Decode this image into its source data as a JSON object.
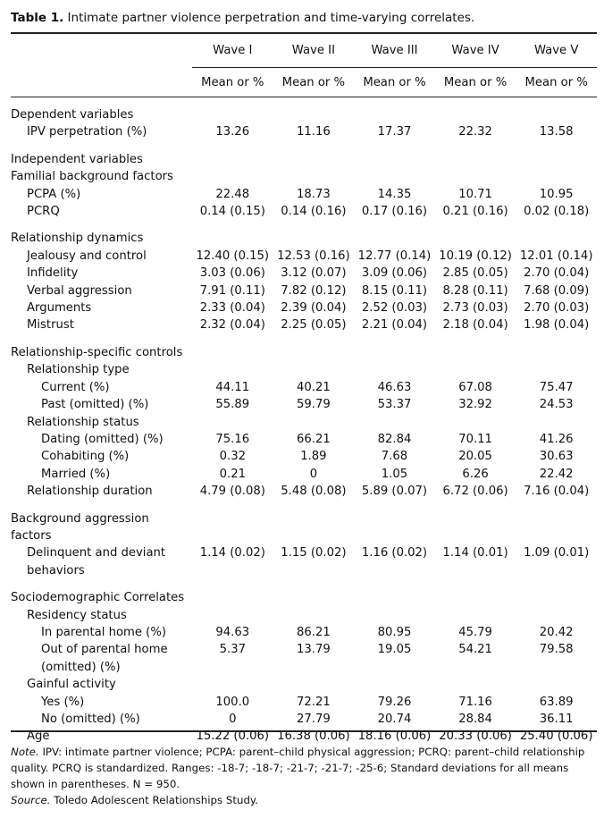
{
  "title": {
    "label": "Table 1.",
    "text": "Intimate partner violence perpetration and time-varying correlates."
  },
  "table": {
    "waves": [
      "Wave I",
      "Wave II",
      "Wave III",
      "Wave IV",
      "Wave V"
    ],
    "subheader": [
      "Mean or %",
      "Mean or %",
      "Mean or %",
      "Mean or %",
      "Mean or %"
    ],
    "sections": [
      {
        "rows": [
          {
            "label": "Dependent variables"
          },
          {
            "label": "IPV perpetration (%)",
            "values": [
              "13.26",
              "11.16",
              "17.37",
              "22.32",
              "13.58"
            ]
          }
        ]
      },
      {
        "rows": [
          {
            "label": "Independent variables"
          },
          {
            "label": "Familial background factors"
          },
          {
            "label": "PCPA (%)",
            "values": [
              "22.48",
              "18.73",
              "14.35",
              "10.71",
              "10.95"
            ]
          },
          {
            "label": "PCRQ",
            "values": [
              "0.14 (0.15)",
              "0.14 (0.16)",
              "0.17 (0.16)",
              "0.21 (0.16)",
              "0.02 (0.18)"
            ]
          }
        ]
      },
      {
        "rows": [
          {
            "label": "Relationship dynamics"
          },
          {
            "label": "Jealousy and control",
            "values": [
              "12.40 (0.15)",
              "12.53 (0.16)",
              "12.77 (0.14)",
              "10.19 (0.12)",
              "12.01 (0.14)"
            ]
          },
          {
            "label": "Infidelity",
            "values": [
              "3.03 (0.06)",
              "3.12 (0.07)",
              "3.09 (0.06)",
              "2.85 (0.05)",
              "2.70 (0.04)"
            ]
          },
          {
            "label": "Verbal aggression",
            "values": [
              "7.91 (0.11)",
              "7.82 (0.12)",
              "8.15 (0.11)",
              "8.28 (0.11)",
              "7.68 (0.09)"
            ]
          },
          {
            "label": "Arguments",
            "values": [
              "2.33 (0.04)",
              "2.39 (0.04)",
              "2.52 (0.03)",
              "2.73 (0.03)",
              "2.70 (0.03)"
            ]
          },
          {
            "label": "Mistrust",
            "values": [
              "2.32 (0.04)",
              "2.25 (0.05)",
              "2.21 (0.04)",
              "2.18 (0.04)",
              "1.98 (0.04)"
            ]
          }
        ]
      },
      {
        "rows": [
          {
            "label": "Relationship-specific controls"
          },
          {
            "label": "Relationship type"
          },
          {
            "label": "Current (%)",
            "values": [
              "44.11",
              "40.21",
              "46.63",
              "67.08",
              "75.47"
            ]
          },
          {
            "label": "Past (omitted) (%)",
            "values": [
              "55.89",
              "59.79",
              "53.37",
              "32.92",
              "24.53"
            ]
          },
          {
            "label": "Relationship status"
          },
          {
            "label": "Dating (omitted) (%)",
            "values": [
              "75.16",
              "66.21",
              "82.84",
              "70.11",
              "41.26"
            ]
          },
          {
            "label": "Cohabiting (%)",
            "values": [
              "0.32",
              "1.89",
              "7.68",
              "20.05",
              "30.63"
            ]
          },
          {
            "label": "Married (%)",
            "values": [
              "0.21",
              "0",
              "1.05",
              "6.26",
              "22.42"
            ]
          },
          {
            "label": "Relationship duration",
            "values": [
              "4.79 (0.08)",
              "5.48 (0.08)",
              "5.89 (0.07)",
              "6.72 (0.06)",
              "7.16 (0.04)"
            ]
          }
        ]
      },
      {
        "rows": [
          {
            "label": "Background aggression factors"
          },
          {
            "label": "Delinquent and deviant behaviors",
            "values": [
              "1.14 (0.02)",
              "1.15 (0.02)",
              "1.16 (0.02)",
              "1.14 (0.01)",
              "1.09 (0.01)"
            ]
          }
        ]
      },
      {
        "rows": [
          {
            "label": "Sociodemographic Correlates"
          },
          {
            "label": "Residency status"
          },
          {
            "label": "In parental home (%)",
            "values": [
              "94.63",
              "86.21",
              "80.95",
              "45.79",
              "20.42"
            ]
          },
          {
            "label": "Out of parental home (omitted) (%)",
            "values": [
              "5.37",
              "13.79",
              "19.05",
              "54.21",
              "79.58"
            ]
          },
          {
            "label": "Gainful activity"
          },
          {
            "label": "Yes (%)",
            "values": [
              "100.0",
              "72.21",
              "79.26",
              "71.16",
              "63.89"
            ]
          },
          {
            "label": "No (omitted) (%)",
            "values": [
              "0",
              "27.79",
              "20.74",
              "28.84",
              "36.11"
            ]
          },
          {
            "label": "Age",
            "values": [
              "15.22 (0.06)",
              "16.38 (0.06)",
              "18.16 (0.06)",
              "20.33 (0.06)",
              "25.40 (0.06)"
            ]
          }
        ]
      }
    ]
  },
  "notes": {
    "note_label": "Note.",
    "note_text": "IPV: intimate partner violence; PCPA: parent–child physical aggression; PCRQ: parent–child relationship quality. PCRQ is standardized. Ranges: -18-7; -18-7; -21-7; -21-7; -25-6; Standard deviations for all means shown in parentheses. N = 950.",
    "source_label": "Source.",
    "source_text": "Toledo Adolescent Relationships Study."
  }
}
